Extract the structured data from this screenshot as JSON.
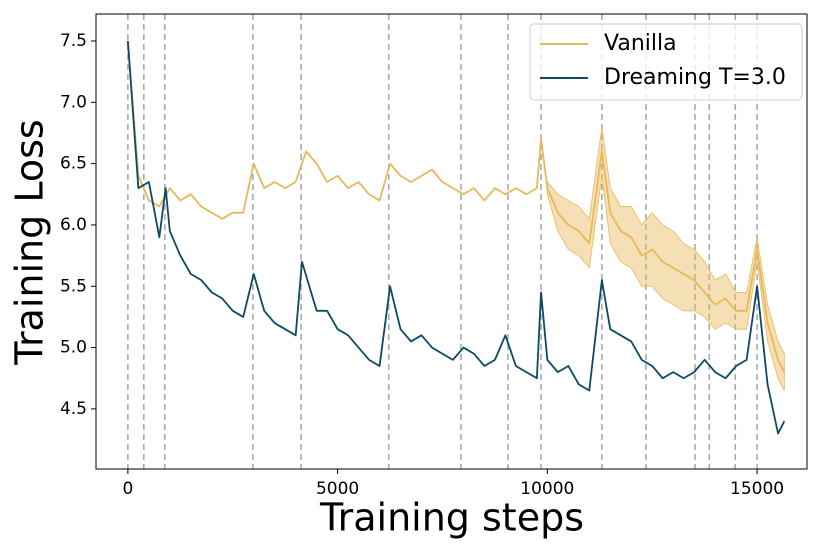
{
  "chart_data": {
    "type": "line",
    "x_label": "Training steps",
    "y_label": "Training Loss",
    "xlim": [
      -760,
      16190
    ],
    "ylim": [
      4.01,
      7.72
    ],
    "xticks": [
      0,
      5000,
      10000,
      15000
    ],
    "yticks": [
      4.5,
      {
        "value": 5,
        "label": "5.0"
      },
      5.5,
      {
        "value": 6,
        "label": "6.0"
      },
      6.5,
      {
        "value": 7,
        "label": "7.0"
      },
      7.5
    ],
    "vlines": [
      0,
      380,
      880,
      2980,
      4130,
      6220,
      7940,
      9060,
      9850,
      11300,
      12350,
      13520,
      13860,
      14480,
      15000
    ],
    "legend": "upper right",
    "series": [
      {
        "name": "Vanilla",
        "color": "#e8b85a",
        "x": [
          0,
          250,
          500,
          750,
          1000,
          1250,
          1500,
          1750,
          2000,
          2250,
          2500,
          2750,
          3000,
          3250,
          3500,
          3750,
          4000,
          4250,
          4500,
          4750,
          5000,
          5250,
          5500,
          5750,
          6000,
          6250,
          6500,
          6750,
          7000,
          7250,
          7500,
          7750,
          8000,
          8250,
          8500,
          8750,
          9000,
          9250,
          9500,
          9750,
          9850,
          10000,
          10250,
          10500,
          10750,
          11000,
          11300,
          11500,
          11750,
          12000,
          12250,
          12500,
          12750,
          13000,
          13250,
          13500,
          13750,
          14000,
          14250,
          14500,
          14750,
          15000,
          15250,
          15500,
          15650
        ],
        "values": [
          7.5,
          6.4,
          6.2,
          6.15,
          6.3,
          6.2,
          6.25,
          6.15,
          6.1,
          6.05,
          6.1,
          6.1,
          6.5,
          6.3,
          6.35,
          6.3,
          6.35,
          6.6,
          6.5,
          6.35,
          6.4,
          6.3,
          6.35,
          6.25,
          6.2,
          6.5,
          6.4,
          6.35,
          6.4,
          6.45,
          6.35,
          6.3,
          6.25,
          6.3,
          6.2,
          6.3,
          6.25,
          6.3,
          6.25,
          6.3,
          6.7,
          6.3,
          6.1,
          6.0,
          5.95,
          5.85,
          6.6,
          6.1,
          5.95,
          5.9,
          5.75,
          5.8,
          5.7,
          5.65,
          5.6,
          5.55,
          5.45,
          5.35,
          5.4,
          5.3,
          5.3,
          5.8,
          5.2,
          4.9,
          4.8
        ]
      },
      {
        "name": "Dreaming T=3.0",
        "color": "#0d4a63",
        "x": [
          0,
          250,
          500,
          750,
          900,
          1000,
          1250,
          1500,
          1750,
          2000,
          2250,
          2500,
          2750,
          3000,
          3250,
          3500,
          3750,
          4000,
          4150,
          4500,
          4750,
          5000,
          5250,
          5500,
          5750,
          6000,
          6250,
          6500,
          6750,
          7000,
          7250,
          7500,
          7750,
          8000,
          8250,
          8500,
          8750,
          9000,
          9250,
          9500,
          9750,
          9850,
          10000,
          10250,
          10500,
          10750,
          11000,
          11300,
          11500,
          11750,
          12000,
          12250,
          12500,
          12750,
          13000,
          13250,
          13500,
          13750,
          14000,
          14250,
          14500,
          14750,
          15000,
          15250,
          15500,
          15650
        ],
        "values": [
          7.5,
          6.3,
          6.35,
          5.9,
          6.3,
          5.95,
          5.75,
          5.6,
          5.55,
          5.45,
          5.4,
          5.3,
          5.25,
          5.6,
          5.3,
          5.2,
          5.15,
          5.1,
          5.7,
          5.3,
          5.3,
          5.15,
          5.1,
          5.0,
          4.9,
          4.85,
          5.5,
          5.15,
          5.05,
          5.1,
          5.0,
          4.95,
          4.9,
          5.0,
          4.95,
          4.85,
          4.9,
          5.1,
          4.85,
          4.8,
          4.75,
          5.45,
          4.9,
          4.8,
          4.85,
          4.7,
          4.65,
          5.55,
          5.15,
          5.1,
          5.05,
          4.9,
          4.85,
          4.75,
          4.8,
          4.75,
          4.8,
          4.9,
          4.8,
          4.75,
          4.85,
          4.9,
          5.5,
          4.7,
          4.3,
          4.4
        ]
      }
    ],
    "band": {
      "color": "#e8b85a",
      "x": [
        10000,
        10250,
        10500,
        10750,
        11000,
        11300,
        11500,
        11750,
        12000,
        12250,
        12500,
        12750,
        13000,
        13250,
        13500,
        13750,
        14000,
        14250,
        14500,
        14750,
        15000,
        15250,
        15500,
        15650
      ],
      "lower": [
        6.25,
        5.95,
        5.8,
        5.75,
        5.65,
        6.4,
        5.85,
        5.7,
        5.65,
        5.5,
        5.5,
        5.4,
        5.35,
        5.3,
        5.3,
        5.25,
        5.15,
        5.2,
        5.15,
        5.15,
        5.7,
        5.05,
        4.75,
        4.65
      ],
      "upper": [
        6.35,
        6.25,
        6.2,
        6.15,
        6.05,
        6.8,
        6.3,
        6.15,
        6.15,
        6.0,
        6.1,
        6.0,
        5.95,
        5.85,
        5.8,
        5.7,
        5.55,
        5.6,
        5.45,
        5.45,
        5.9,
        5.35,
        5.05,
        4.95
      ]
    }
  }
}
